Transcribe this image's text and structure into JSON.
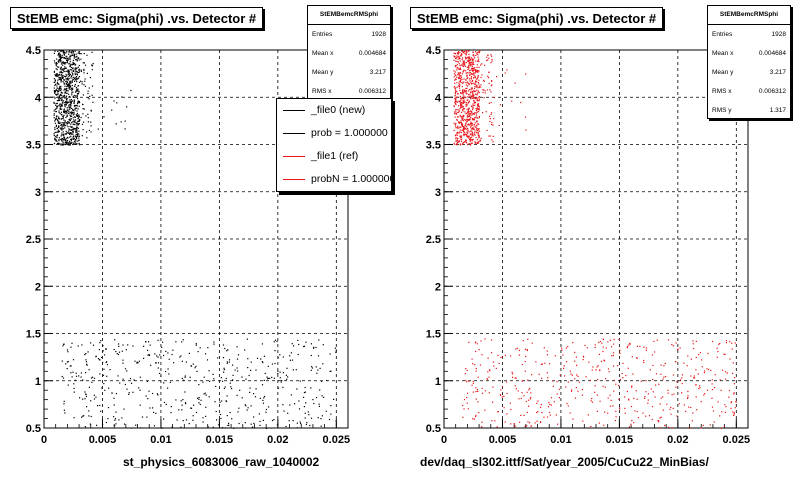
{
  "colors": {
    "black": "#000000",
    "red": "#e8141a",
    "grid": "#000000"
  },
  "footer": "",
  "chart_data": [
    {
      "type": "scatter",
      "title": "StEMB emc: Sigma(phi) .vs. Detector #",
      "xlabel": "st_physics_6083006_raw_1040002",
      "ylabel": "",
      "xlim": [
        0,
        0.026
      ],
      "ylim": [
        0.5,
        4.5
      ],
      "xticks": [
        "0",
        "0.005",
        "0.01",
        "0.015",
        "0.02",
        "0.025"
      ],
      "yticks": [
        "0.5",
        "1",
        "1.5",
        "2",
        "2.5",
        "3",
        "3.5",
        "4",
        "4.5"
      ],
      "grid": true,
      "series": [
        {
          "color": "#000000",
          "clusters": [
            {
              "x": [
                0.0008,
                0.003
              ],
              "y": [
                3.5,
                4.5
              ],
              "n": 900
            },
            {
              "x": [
                0.003,
                0.0042
              ],
              "y": [
                3.5,
                4.5
              ],
              "n": 60
            },
            {
              "x": [
                0.0042,
                0.0075
              ],
              "y": [
                3.6,
                4.4
              ],
              "n": 12
            },
            {
              "x": [
                0.0015,
                0.025
              ],
              "y": [
                0.5,
                1.45
              ],
              "n": 520
            }
          ]
        }
      ],
      "stats": {
        "title": "StEMBemcRMSphi",
        "rows": [
          {
            "label": "Entries",
            "value": "1928"
          },
          {
            "label": "Mean x",
            "value": "0.004684"
          },
          {
            "label": "Mean y",
            "value": "3.217"
          },
          {
            "label": "RMS x",
            "value": "0.006312"
          }
        ]
      },
      "legend": {
        "placement": "top-right",
        "entries": [
          {
            "label": "_file0 (new)",
            "color": "#000000"
          },
          {
            "label": "prob = 1.000000",
            "color": "#000000"
          },
          {
            "label": "_file1 (ref)",
            "color": "#e8141a"
          },
          {
            "label": "probN = 1.000000",
            "color": "#e8141a"
          }
        ]
      }
    },
    {
      "type": "scatter",
      "title": "StEMB emc: Sigma(phi) .vs. Detector #",
      "xlabel": "dev/daq_sl302.ittf/Sat/year_2005/CuCu22_MinBias/",
      "ylabel": "",
      "xlim": [
        0,
        0.026
      ],
      "ylim": [
        0.5,
        4.5
      ],
      "xticks": [
        "0",
        "0.005",
        "0.01",
        "0.015",
        "0.02",
        "0.025"
      ],
      "yticks": [
        "0.5",
        "1",
        "1.5",
        "2",
        "2.5",
        "3",
        "3.5",
        "4",
        "4.5"
      ],
      "grid": true,
      "series": [
        {
          "color": "#e8141a",
          "clusters": [
            {
              "x": [
                0.0008,
                0.003
              ],
              "y": [
                3.5,
                4.5
              ],
              "n": 800
            },
            {
              "x": [
                0.003,
                0.0042
              ],
              "y": [
                3.5,
                4.5
              ],
              "n": 60
            },
            {
              "x": [
                0.0042,
                0.0075
              ],
              "y": [
                3.6,
                4.4
              ],
              "n": 12
            },
            {
              "x": [
                0.0015,
                0.025
              ],
              "y": [
                0.5,
                1.45
              ],
              "n": 520
            }
          ]
        }
      ],
      "stats": {
        "title": "StEMBemcRMSphi",
        "rows": [
          {
            "label": "Entries",
            "value": "1928"
          },
          {
            "label": "Mean x",
            "value": "0.004684"
          },
          {
            "label": "Mean y",
            "value": "3.217"
          },
          {
            "label": "RMS x",
            "value": "0.006312"
          },
          {
            "label": "RMS y",
            "value": "1.317"
          }
        ]
      }
    }
  ]
}
